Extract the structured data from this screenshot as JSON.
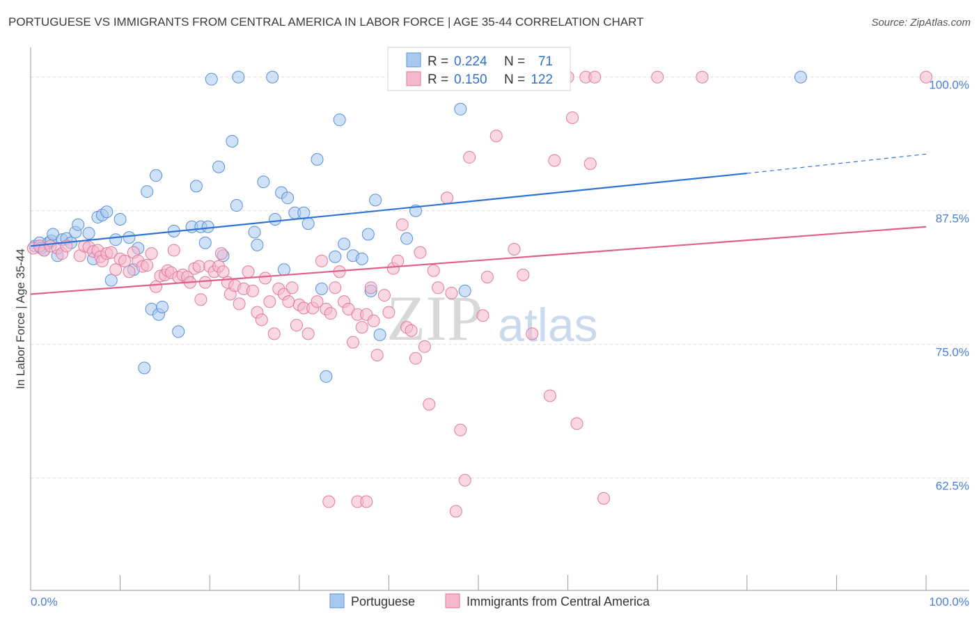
{
  "header": {
    "title": "PORTUGUESE VS IMMIGRANTS FROM CENTRAL AMERICA IN LABOR FORCE | AGE 35-44 CORRELATION CHART",
    "source": "Source: ZipAtlas.com"
  },
  "watermark": {
    "zip": "ZIP",
    "atlas": "atlas"
  },
  "stats_box": {
    "rows": [
      {
        "r_label": "R =",
        "r_value": "0.224",
        "n_label": "N =",
        "n_value": "71",
        "color": "#a8c8f0",
        "stroke": "#5a8fd8"
      },
      {
        "r_label": "R =",
        "r_value": "0.150",
        "n_label": "N =",
        "n_value": "122",
        "color": "#f6b8cc",
        "stroke": "#e07a9a"
      }
    ]
  },
  "legend": {
    "items": [
      {
        "label": "Portuguese",
        "color": "#a8c8f0",
        "stroke": "#5a8fd8"
      },
      {
        "label": "Immigrants from Central America",
        "color": "#f6b8cc",
        "stroke": "#e07a9a"
      }
    ]
  },
  "chart_data": {
    "type": "scatter",
    "ylabel": "In Labor Force | Age 35-44",
    "xlabel": "",
    "xlim": [
      0,
      100
    ],
    "ylim": [
      52,
      102
    ],
    "x_tick_labels": [
      "0.0%",
      "100.0%"
    ],
    "y_ticks": [
      {
        "value": 100,
        "label": "100.0%"
      },
      {
        "value": 87.5,
        "label": "87.5%"
      },
      {
        "value": 75,
        "label": "75.0%"
      },
      {
        "value": 62.5,
        "label": "62.5%"
      }
    ],
    "grid": true,
    "series": [
      {
        "name": "Portuguese",
        "color": "#a8c8f0",
        "stroke": "#5a8fd8",
        "line_color": "#2f72d6",
        "trend": {
          "x0": 0,
          "y0": 84.2,
          "x1": 80,
          "y1": 91.0,
          "dash_to_x": 100,
          "dash_to_y": 92.8
        },
        "points": [
          [
            0.5,
            84.2
          ],
          [
            1,
            84.5
          ],
          [
            1.2,
            84.0
          ],
          [
            1.5,
            83.8
          ],
          [
            2,
            84.5
          ],
          [
            2.3,
            84.7
          ],
          [
            2.5,
            85.3
          ],
          [
            3,
            83.3
          ],
          [
            3.5,
            84.8
          ],
          [
            4,
            84.9
          ],
          [
            4.5,
            84.5
          ],
          [
            5,
            85.5
          ],
          [
            5.3,
            86.2
          ],
          [
            6.5,
            85.4
          ],
          [
            7,
            83.0
          ],
          [
            7.5,
            86.9
          ],
          [
            8,
            87.1
          ],
          [
            8.5,
            87.4
          ],
          [
            9,
            81.0
          ],
          [
            9.5,
            84.8
          ],
          [
            10,
            86.7
          ],
          [
            11,
            85.0
          ],
          [
            11.5,
            82.0
          ],
          [
            12,
            84.0
          ],
          [
            12.7,
            72.8
          ],
          [
            13,
            89.3
          ],
          [
            13.5,
            78.3
          ],
          [
            14,
            90.8
          ],
          [
            14.3,
            77.8
          ],
          [
            14.7,
            78.5
          ],
          [
            16,
            85.6
          ],
          [
            16.5,
            76.2
          ],
          [
            18,
            86.0
          ],
          [
            18.5,
            89.8
          ],
          [
            19,
            86.0
          ],
          [
            19.5,
            84.5
          ],
          [
            19.8,
            86.0
          ],
          [
            20.2,
            99.8
          ],
          [
            21,
            91.6
          ],
          [
            21.5,
            83.3
          ],
          [
            22.5,
            94.0
          ],
          [
            23,
            88.0
          ],
          [
            23.2,
            100
          ],
          [
            25,
            85.5
          ],
          [
            25.3,
            84.3
          ],
          [
            26,
            90.2
          ],
          [
            27,
            100
          ],
          [
            27.3,
            86.7
          ],
          [
            28,
            89.2
          ],
          [
            28.3,
            82.0
          ],
          [
            28.7,
            88.7
          ],
          [
            29.5,
            87.3
          ],
          [
            30.5,
            87.3
          ],
          [
            31,
            86.3
          ],
          [
            32,
            92.3
          ],
          [
            32.5,
            80.2
          ],
          [
            33,
            72.0
          ],
          [
            34,
            83.2
          ],
          [
            34.5,
            96.0
          ],
          [
            35,
            84.4
          ],
          [
            36,
            83.3
          ],
          [
            37,
            83.0
          ],
          [
            37.7,
            85.3
          ],
          [
            38,
            80.0
          ],
          [
            38.5,
            88.5
          ],
          [
            39,
            75.9
          ],
          [
            42,
            84.9
          ],
          [
            43,
            87.5
          ],
          [
            48,
            97.0
          ],
          [
            48.5,
            80.0
          ],
          [
            86,
            100
          ]
        ]
      },
      {
        "name": "Immigrants from Central America",
        "color": "#f6b8cc",
        "stroke": "#e07a9a",
        "line_color": "#e0608a",
        "trend": {
          "x0": 0,
          "y0": 79.7,
          "x1": 100,
          "y1": 86.0
        },
        "points": [
          [
            0.3,
            84.0
          ],
          [
            1,
            84.2
          ],
          [
            1.5,
            83.8
          ],
          [
            2.2,
            84.2
          ],
          [
            3,
            84.0
          ],
          [
            3.5,
            83.5
          ],
          [
            4,
            84.2
          ],
          [
            5.5,
            83.3
          ],
          [
            6,
            84.2
          ],
          [
            6.5,
            84.1
          ],
          [
            7,
            83.7
          ],
          [
            7.5,
            83.8
          ],
          [
            7.8,
            83.2
          ],
          [
            8,
            82.8
          ],
          [
            8.5,
            83.5
          ],
          [
            9,
            83.6
          ],
          [
            9.5,
            82.0
          ],
          [
            10,
            83.0
          ],
          [
            10.5,
            82.8
          ],
          [
            11,
            81.8
          ],
          [
            11.5,
            83.6
          ],
          [
            12,
            82.8
          ],
          [
            12.5,
            82.3
          ],
          [
            13,
            82.4
          ],
          [
            13.5,
            83.5
          ],
          [
            14,
            80.4
          ],
          [
            14.5,
            81.4
          ],
          [
            15,
            81.5
          ],
          [
            15.3,
            81.9
          ],
          [
            15.7,
            81.7
          ],
          [
            16,
            83.8
          ],
          [
            16.5,
            81.3
          ],
          [
            17,
            81.5
          ],
          [
            17.5,
            81.3
          ],
          [
            17.8,
            80.8
          ],
          [
            18.3,
            82.1
          ],
          [
            18.8,
            82.3
          ],
          [
            19,
            79.2
          ],
          [
            19.5,
            80.8
          ],
          [
            20,
            82.3
          ],
          [
            20.5,
            81.8
          ],
          [
            21,
            82.3
          ],
          [
            21.5,
            81.8
          ],
          [
            22,
            80.8
          ],
          [
            22.3,
            79.7
          ],
          [
            22.8,
            80.5
          ],
          [
            23.3,
            78.8
          ],
          [
            23.8,
            80.2
          ],
          [
            24.3,
            81.8
          ],
          [
            24.8,
            80.0
          ],
          [
            25.3,
            78.0
          ],
          [
            25.8,
            77.3
          ],
          [
            26.2,
            81.2
          ],
          [
            26.7,
            79.0
          ],
          [
            27.2,
            76.0
          ],
          [
            27.7,
            80.2
          ],
          [
            28.3,
            79.7
          ],
          [
            28.8,
            79.0
          ],
          [
            29.2,
            80.3
          ],
          [
            29.7,
            76.8
          ],
          [
            30,
            78.7
          ],
          [
            30.5,
            78.4
          ],
          [
            31,
            76.0
          ],
          [
            31.5,
            78.4
          ],
          [
            32,
            79.0
          ],
          [
            32.5,
            82.8
          ],
          [
            33,
            78.3
          ],
          [
            33.5,
            77.9
          ],
          [
            34,
            80.3
          ],
          [
            34.5,
            81.8
          ],
          [
            35,
            79.0
          ],
          [
            35.5,
            78.3
          ],
          [
            36,
            75.2
          ],
          [
            36.5,
            77.8
          ],
          [
            37,
            76.6
          ],
          [
            37.5,
            77.8
          ],
          [
            38,
            80.3
          ],
          [
            38.3,
            77.2
          ],
          [
            38.7,
            74.0
          ],
          [
            39.5,
            79.6
          ],
          [
            40,
            78.0
          ],
          [
            40.5,
            82.1
          ],
          [
            41,
            82.8
          ],
          [
            41.5,
            86.2
          ],
          [
            42,
            76.6
          ],
          [
            42.5,
            76.3
          ],
          [
            43,
            73.7
          ],
          [
            43.5,
            83.6
          ],
          [
            44,
            74.8
          ],
          [
            44.5,
            69.4
          ],
          [
            45,
            81.9
          ],
          [
            45.5,
            80.3
          ],
          [
            46,
            100
          ],
          [
            46.5,
            88.7
          ],
          [
            47,
            79.8
          ],
          [
            47.5,
            59.4
          ],
          [
            48,
            67.0
          ],
          [
            48.5,
            62.3
          ],
          [
            49,
            92.5
          ],
          [
            50.5,
            77.7
          ],
          [
            51,
            81.3
          ],
          [
            52,
            94.5
          ],
          [
            54,
            83.9
          ],
          [
            55,
            81.5
          ],
          [
            56,
            76.0
          ],
          [
            57,
            100
          ],
          [
            58,
            70.2
          ],
          [
            58.5,
            92.2
          ],
          [
            60,
            100
          ],
          [
            60.5,
            96.2
          ],
          [
            61,
            67.6
          ],
          [
            62,
            100
          ],
          [
            62.5,
            91.9
          ],
          [
            63,
            100
          ],
          [
            64,
            60.6
          ],
          [
            70,
            100
          ],
          [
            75,
            100
          ],
          [
            100,
            100
          ],
          [
            36.5,
            60.3
          ],
          [
            37.5,
            60.3
          ],
          [
            21.3,
            83.5
          ],
          [
            33.3,
            60.3
          ]
        ]
      }
    ]
  }
}
